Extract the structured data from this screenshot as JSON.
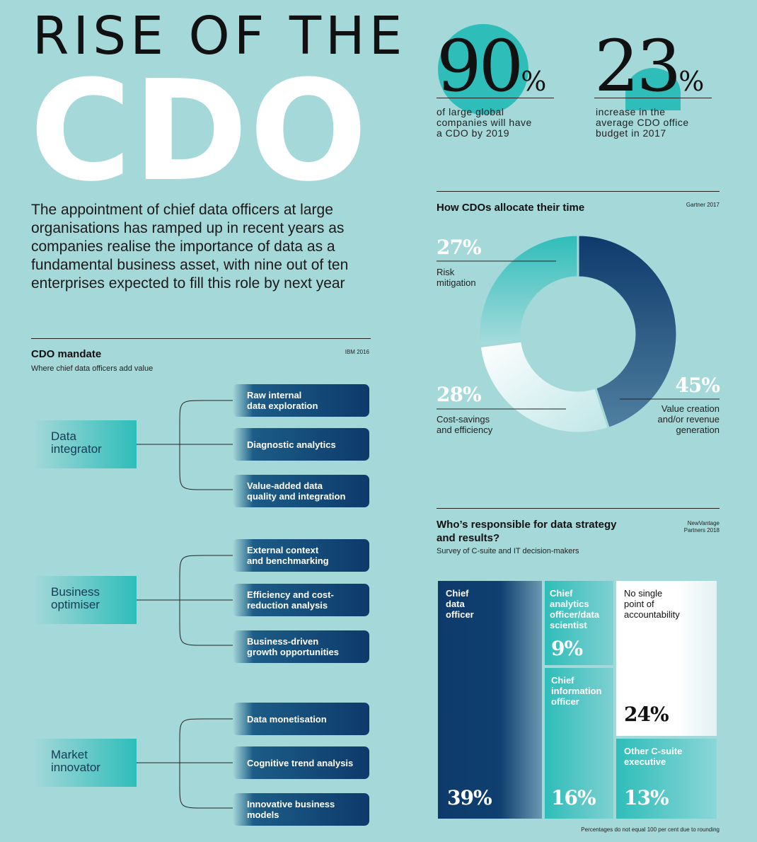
{
  "header": {
    "line1": "RISE OF THE",
    "line2": "CDO"
  },
  "intro": "The appointment of chief data officers at large organisations has ramped up in recent years as companies realise the importance of data as a fundamental business asset, with nine out of ten enterprises expected to fill this role by next year",
  "stats": [
    {
      "num": "90",
      "pct": "%",
      "text": [
        "of large global",
        "companies will have",
        "a CDO by 2019"
      ]
    },
    {
      "num": "23",
      "pct": "%",
      "text": [
        "increase in the",
        "average CDO office",
        "budget in 2017"
      ]
    }
  ],
  "mandate": {
    "title": "CDO mandate",
    "source": "IBM 2016",
    "subtitle": "Where chief data officers add value",
    "groups": [
      {
        "role": [
          "Data",
          "integrator"
        ],
        "items": [
          [
            "Raw internal",
            "data exploration"
          ],
          [
            "Diagnostic analytics"
          ],
          [
            "Value-added data",
            "quality and integration"
          ]
        ]
      },
      {
        "role": [
          "Business",
          "optimiser"
        ],
        "items": [
          [
            "External context",
            "and benchmarking"
          ],
          [
            "Efficiency and cost-",
            "reduction analysis"
          ],
          [
            "Business-driven",
            "growth opportunities"
          ]
        ]
      },
      {
        "role": [
          "Market",
          "innovator"
        ],
        "items": [
          [
            "Data monetisation"
          ],
          [
            "Cognitive trend analysis"
          ],
          [
            "Innovative business models"
          ]
        ]
      }
    ]
  },
  "time": {
    "title": "How CDOs allocate their time",
    "source": "Gartner 2017",
    "slices": [
      {
        "pct": "45%",
        "value": 45,
        "label": [
          "Value creation",
          "and/or revenue",
          "generation"
        ],
        "color": "#0d3a6b"
      },
      {
        "pct": "28%",
        "value": 28,
        "label": [
          "Cost-savings",
          "and efficiency"
        ],
        "color": "#ffffff"
      },
      {
        "pct": "27%",
        "value": 27,
        "label": [
          "Risk",
          "mitigation"
        ],
        "color": "#2ebdb9"
      }
    ]
  },
  "responsible": {
    "title": [
      "Who’s responsible for data strategy",
      "and results?"
    ],
    "source": [
      "NewVantage",
      "Partners 2018"
    ],
    "subtitle": "Survey of C-suite and IT decision-makers",
    "cells": {
      "cdo": {
        "label": [
          "Chief",
          "data",
          "officer"
        ],
        "pct": "39%",
        "value": 39
      },
      "cao": {
        "label": [
          "Chief",
          "analytics",
          "officer/data",
          "scientist"
        ],
        "pct": "9%",
        "value": 9
      },
      "cio": {
        "label": [
          "Chief",
          "information",
          "officer"
        ],
        "pct": "16%",
        "value": 16
      },
      "none": {
        "label": [
          "No single",
          "point of",
          "accountability"
        ],
        "pct": "24%",
        "value": 24
      },
      "other": {
        "label": [
          "Other C-suite",
          "executive"
        ],
        "pct": "13%",
        "value": 13
      }
    },
    "footnote": "Percentages do not equal 100 per cent due to rounding"
  },
  "colors": {
    "background": "#a5d8d9",
    "navy": "#0d3a6b",
    "teal": "#2ebdb9",
    "white": "#ffffff"
  }
}
